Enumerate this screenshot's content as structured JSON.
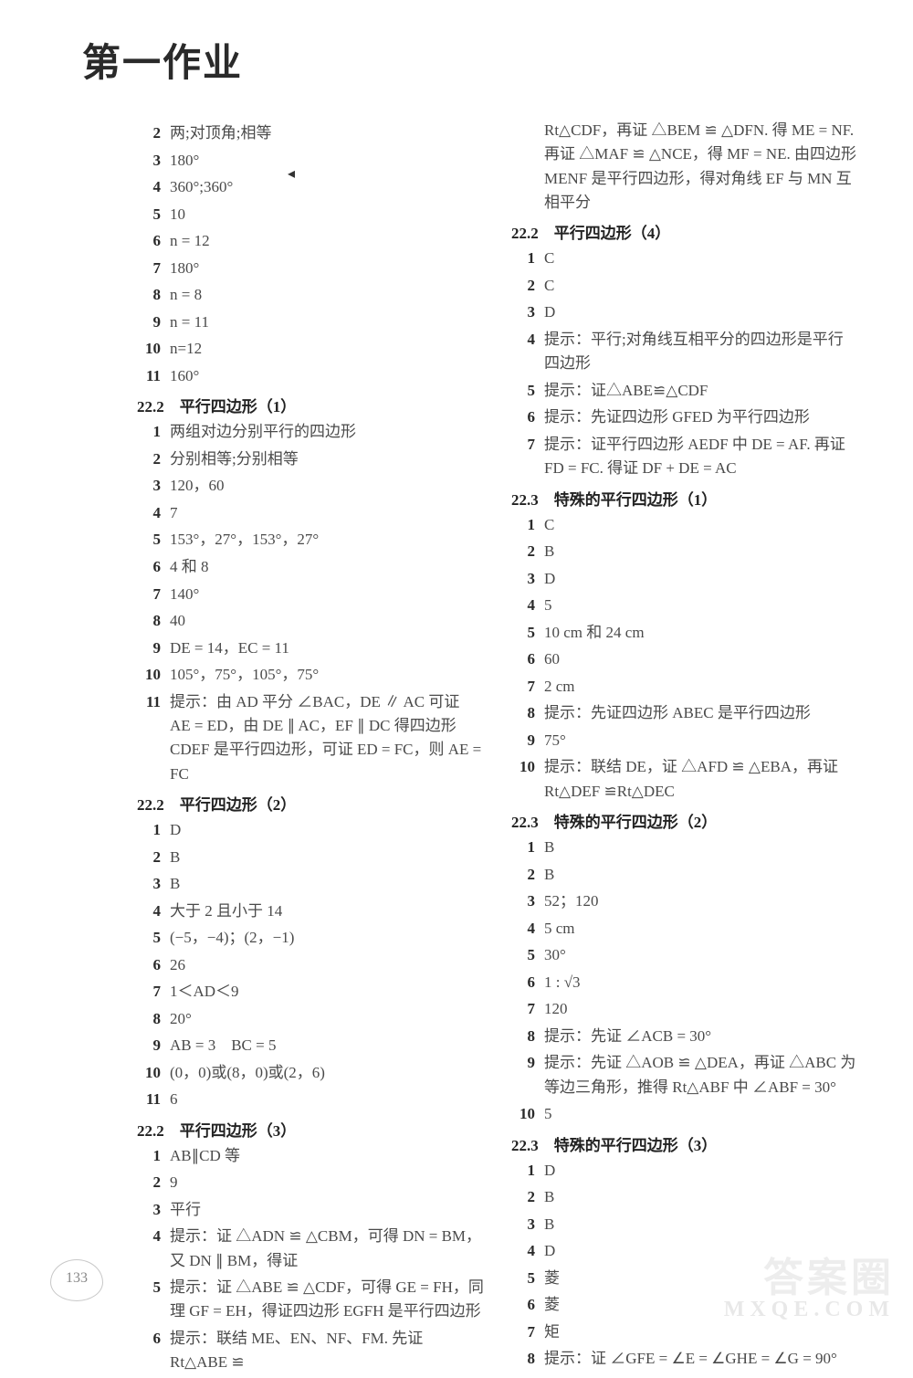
{
  "page_title": "第一作业",
  "page_number": "133",
  "marker_glyph": "◂",
  "watermark_main": "答案圈",
  "watermark_sub": "MXQE.COM",
  "left": {
    "s1_items": [
      {
        "n": "2",
        "t": "两;对顶角;相等"
      },
      {
        "n": "3",
        "t": "180°"
      },
      {
        "n": "4",
        "t": "360°;360°"
      },
      {
        "n": "5",
        "t": "10"
      },
      {
        "n": "6",
        "t": "n = 12"
      },
      {
        "n": "7",
        "t": "180°"
      },
      {
        "n": "8",
        "t": "n = 8"
      },
      {
        "n": "9",
        "t": "n = 11"
      },
      {
        "n": "10",
        "t": "n=12"
      },
      {
        "n": "11",
        "t": "160°"
      }
    ],
    "s2_head": "22.2　平行四边形（1）",
    "s2_items": [
      {
        "n": "1",
        "t": "两组对边分别平行的四边形"
      },
      {
        "n": "2",
        "t": "分别相等;分别相等"
      },
      {
        "n": "3",
        "t": "120，60"
      },
      {
        "n": "4",
        "t": "7"
      },
      {
        "n": "5",
        "t": "153°，27°，153°，27°"
      },
      {
        "n": "6",
        "t": "4 和 8"
      },
      {
        "n": "7",
        "t": "140°"
      },
      {
        "n": "8",
        "t": "40"
      },
      {
        "n": "9",
        "t": "DE = 14，EC = 11"
      },
      {
        "n": "10",
        "t": "105°，75°，105°，75°"
      },
      {
        "n": "11",
        "t": "提示：由 AD 平分 ∠BAC，DE ∥ AC 可证 AE = ED，由 DE ∥ AC，EF ∥ DC 得四边形 CDEF 是平行四边形，可证 ED = FC，则 AE = FC"
      }
    ],
    "s3_head": "22.2　平行四边形（2）",
    "s3_items": [
      {
        "n": "1",
        "t": "D"
      },
      {
        "n": "2",
        "t": "B"
      },
      {
        "n": "3",
        "t": "B"
      },
      {
        "n": "4",
        "t": "大于 2 且小于 14"
      },
      {
        "n": "5",
        "t": "(−5，−4)；(2，−1)"
      },
      {
        "n": "6",
        "t": "26"
      },
      {
        "n": "7",
        "t": "1＜AD＜9"
      },
      {
        "n": "8",
        "t": "20°"
      },
      {
        "n": "9",
        "t": "AB = 3　BC = 5"
      },
      {
        "n": "10",
        "t": "(0，0)或(8，0)或(2，6)"
      },
      {
        "n": "11",
        "t": "6"
      }
    ],
    "s4_head": "22.2　平行四边形（3）",
    "s4_items": [
      {
        "n": "1",
        "t": "AB∥CD 等"
      },
      {
        "n": "2",
        "t": "9"
      },
      {
        "n": "3",
        "t": "平行"
      },
      {
        "n": "4",
        "t": "提示：证 △ADN ≌ △CBM，可得 DN = BM，又 DN ∥ BM，得证"
      },
      {
        "n": "5",
        "t": "提示：证 △ABE ≌ △CDF，可得 GE = FH，同理 GF = EH，得证四边形 EGFH 是平行四边形"
      },
      {
        "n": "6",
        "t": "提示：联结 ME、EN、NF、FM. 先证 Rt△ABE ≌"
      }
    ]
  },
  "right": {
    "cont": "Rt△CDF，再证 △BEM ≌ △DFN. 得 ME = NF. 再证 △MAF ≌ △NCE，得 MF = NE. 由四边形 MENF 是平行四边形，得对角线 EF 与 MN 互相平分",
    "s1_head": "22.2　平行四边形（4）",
    "s1_items": [
      {
        "n": "1",
        "t": "C"
      },
      {
        "n": "2",
        "t": "C"
      },
      {
        "n": "3",
        "t": "D"
      },
      {
        "n": "4",
        "t": "提示：平行;对角线互相平分的四边形是平行四边形"
      },
      {
        "n": "5",
        "t": "提示：证△ABE≌△CDF"
      },
      {
        "n": "6",
        "t": "提示：先证四边形 GFED 为平行四边形"
      },
      {
        "n": "7",
        "t": "提示：证平行四边形 AEDF 中 DE = AF. 再证 FD = FC. 得证 DF + DE = AC"
      }
    ],
    "s2_head": "22.3　特殊的平行四边形（1）",
    "s2_items": [
      {
        "n": "1",
        "t": "C"
      },
      {
        "n": "2",
        "t": "B"
      },
      {
        "n": "3",
        "t": "D"
      },
      {
        "n": "4",
        "t": "5"
      },
      {
        "n": "5",
        "t": "10 cm 和 24 cm"
      },
      {
        "n": "6",
        "t": "60"
      },
      {
        "n": "7",
        "t": "2 cm"
      },
      {
        "n": "8",
        "t": "提示：先证四边形 ABEC 是平行四边形"
      },
      {
        "n": "9",
        "t": "75°"
      },
      {
        "n": "10",
        "t": "提示：联结 DE，证 △AFD ≌ △EBA，再证 Rt△DEF ≌Rt△DEC"
      }
    ],
    "s3_head": "22.3　特殊的平行四边形（2）",
    "s3_items": [
      {
        "n": "1",
        "t": "B"
      },
      {
        "n": "2",
        "t": "B"
      },
      {
        "n": "3",
        "t": "52；120"
      },
      {
        "n": "4",
        "t": "5 cm"
      },
      {
        "n": "5",
        "t": "30°"
      },
      {
        "n": "6",
        "t": "1 : √3"
      },
      {
        "n": "7",
        "t": "120"
      },
      {
        "n": "8",
        "t": "提示：先证 ∠ACB = 30°"
      },
      {
        "n": "9",
        "t": "提示：先证 △AOB ≌ △DEA，再证 △ABC 为等边三角形，推得 Rt△ABF 中 ∠ABF = 30°"
      },
      {
        "n": "10",
        "t": "5"
      }
    ],
    "s4_head": "22.3　特殊的平行四边形（3）",
    "s4_items": [
      {
        "n": "1",
        "t": "D"
      },
      {
        "n": "2",
        "t": "B"
      },
      {
        "n": "3",
        "t": "B"
      },
      {
        "n": "4",
        "t": "D"
      },
      {
        "n": "5",
        "t": "菱"
      },
      {
        "n": "6",
        "t": "菱"
      },
      {
        "n": "7",
        "t": "矩"
      },
      {
        "n": "8",
        "t": "提示：证 ∠GFE = ∠E = ∠GHE = ∠G = 90°"
      }
    ]
  }
}
